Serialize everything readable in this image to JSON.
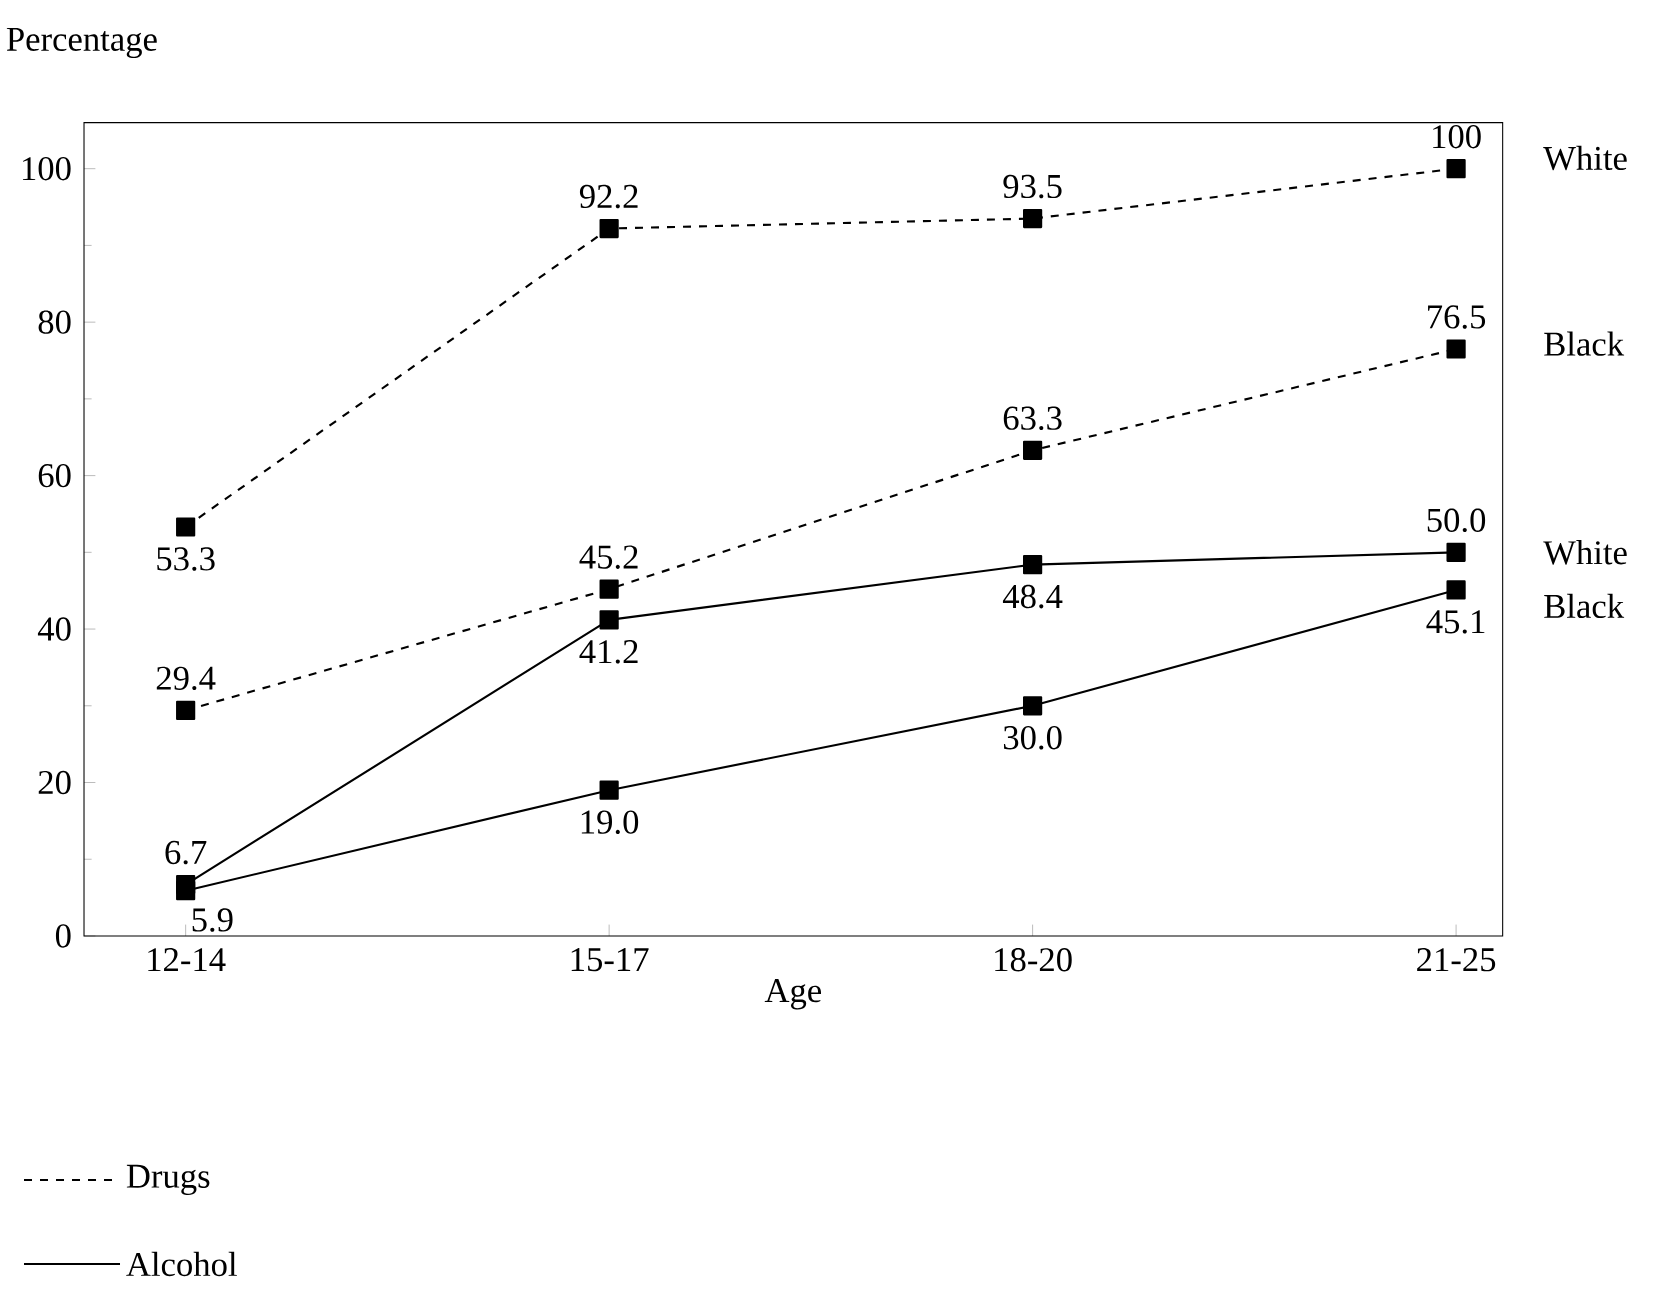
{
  "chart_data": {
    "type": "line",
    "xlabel": "Age",
    "ylabel": "Percentage",
    "categories": [
      "12-14",
      "15-17",
      "18-20",
      "21-25"
    ],
    "ylim": [
      0,
      106
    ],
    "yticks": [
      0,
      20,
      40,
      60,
      80,
      100
    ],
    "series": [
      {
        "name": "White",
        "color": "#000000",
        "line_style": "dashed",
        "values": [
          53.3,
          92.2,
          93.5,
          100
        ],
        "value_labels": [
          "53.3",
          "92.2",
          "93.5",
          "100"
        ]
      },
      {
        "name": "Black",
        "color": "#000000",
        "line_style": "dashed",
        "values": [
          29.4,
          45.2,
          63.3,
          76.5
        ],
        "value_labels": [
          "29.4",
          "45.2",
          "63.3",
          "76.5"
        ]
      },
      {
        "name": "White",
        "color": "#000000",
        "line_style": "solid",
        "values": [
          6.7,
          41.2,
          48.4,
          50.0
        ],
        "value_labels": [
          "6.7",
          "41.2",
          "48.4",
          "50.0"
        ]
      },
      {
        "name": "Black",
        "color": "#000000",
        "line_style": "solid",
        "values": [
          5.9,
          19.0,
          30.0,
          45.1
        ],
        "value_labels": [
          "5.9",
          "19.0",
          "30.0",
          "45.1"
        ]
      }
    ],
    "marker": "square",
    "annotations": [
      "Drugs",
      "Alcohol"
    ]
  }
}
